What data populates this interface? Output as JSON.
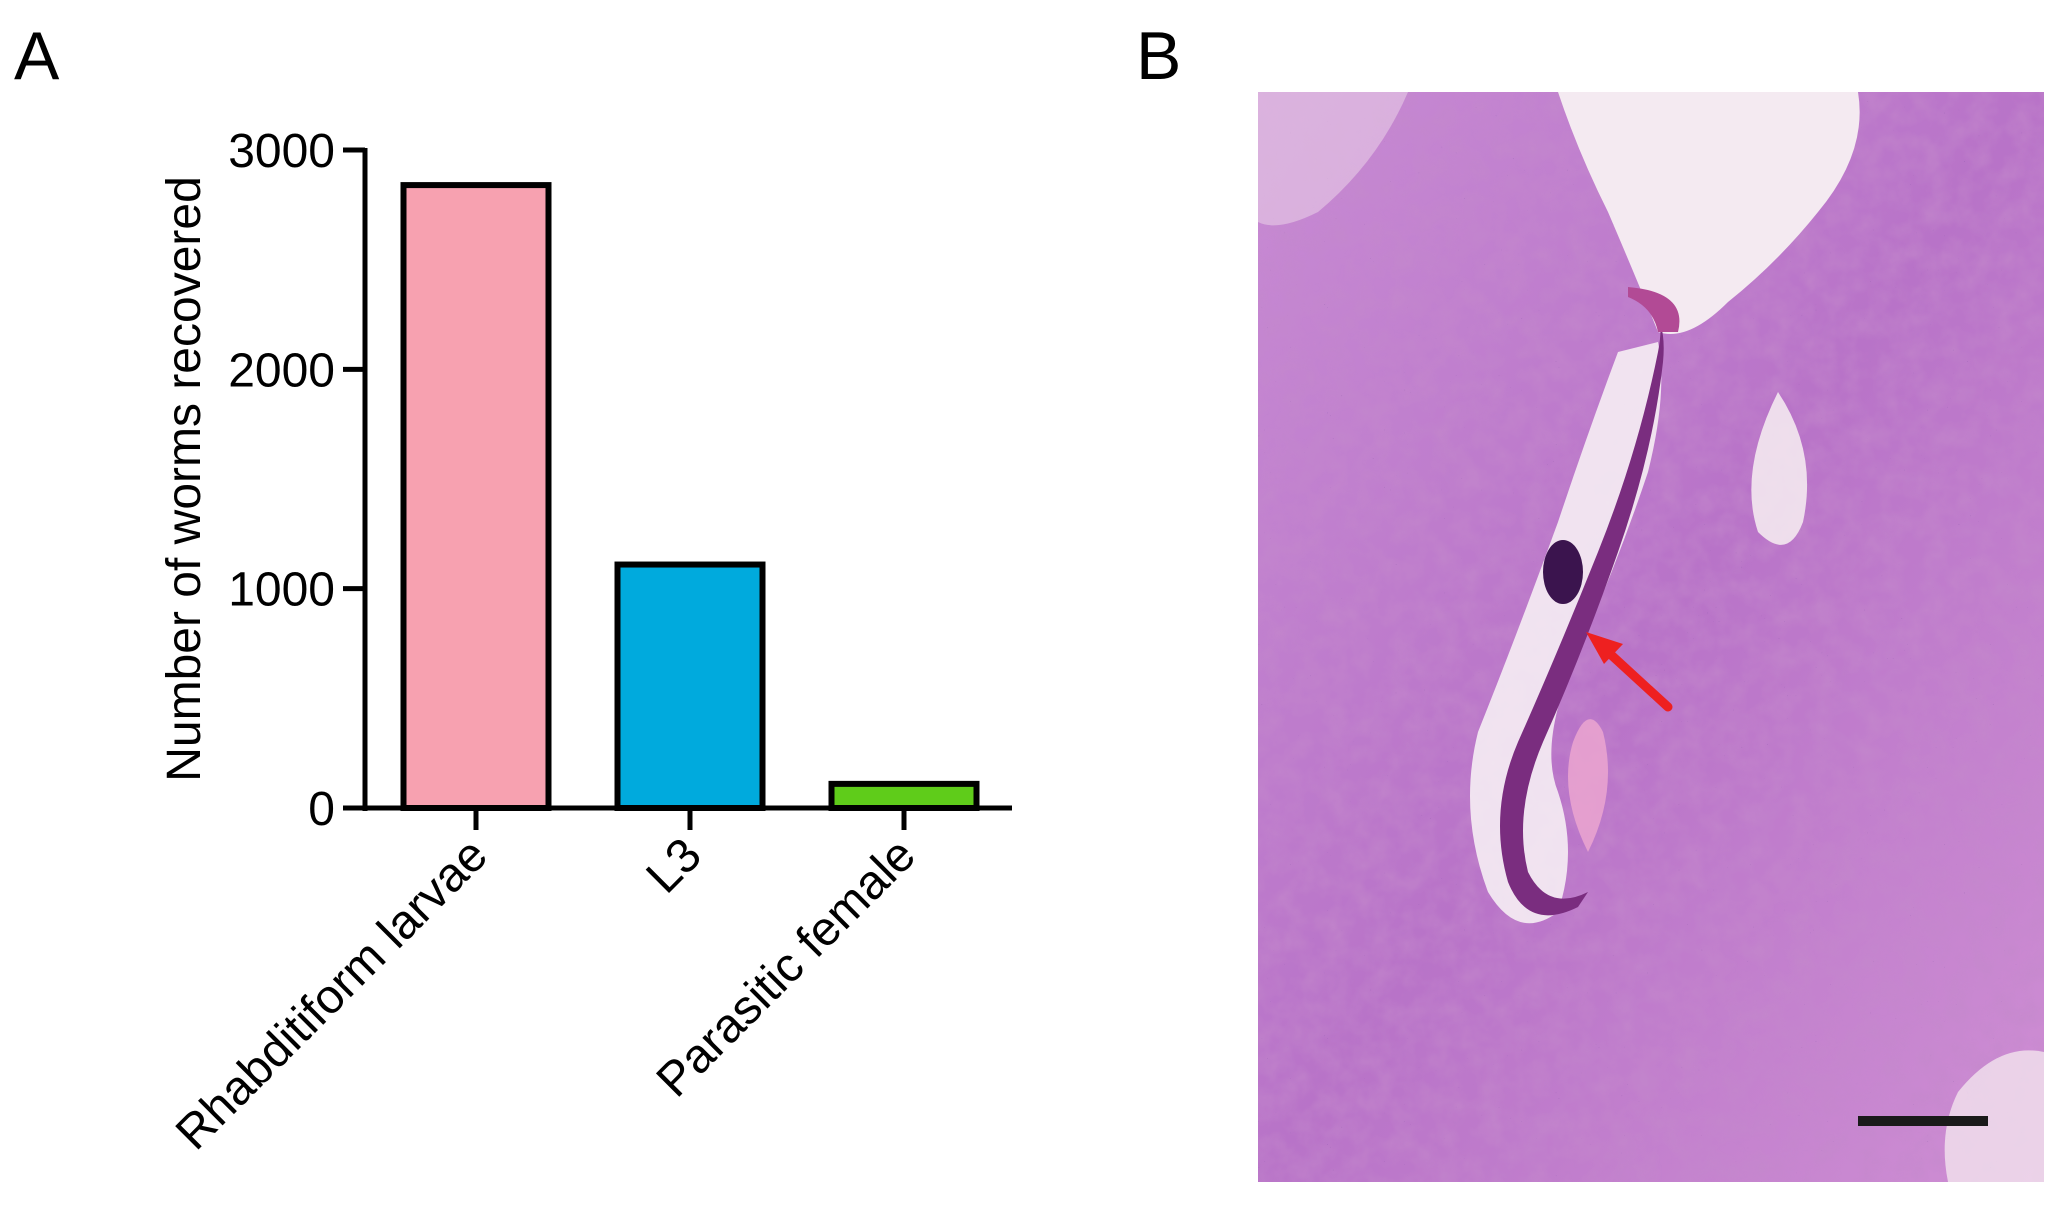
{
  "panels": {
    "a": "A",
    "b": "B"
  },
  "chart_data": {
    "type": "bar",
    "categories": [
      "Rhabditiform larvae",
      "L3",
      "Parasitic female"
    ],
    "values": [
      2840,
      1110,
      110
    ],
    "colors": [
      "#f7a1b0",
      "#00aadd",
      "#5fcc1a"
    ],
    "ylabel": "Number of worms recovered",
    "ylim": [
      0,
      3000
    ],
    "yticks": [
      0,
      1000,
      2000,
      3000
    ],
    "grid": false
  },
  "micrograph": {
    "stain_colors": [
      "#c97fd0",
      "#f3e6f0",
      "#3a1f6e",
      "#c23a8a"
    ],
    "annotations": [
      "red-arrow",
      "scale-bar"
    ]
  }
}
